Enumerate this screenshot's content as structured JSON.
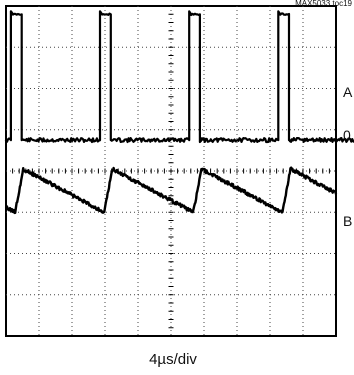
{
  "chart_data": {
    "type": "line",
    "title": "",
    "figure_id": "MAX5033 toc19",
    "xlabel": "4µs/div",
    "grid": true,
    "divisions": {
      "x": 10,
      "y": 8
    },
    "period_us": 10.8,
    "series": [
      {
        "label": "A",
        "zero_label": "0",
        "waveform": "pulse",
        "units": "div",
        "baseline": 4.75,
        "high": 7.8,
        "pulse_width_us": 1.3,
        "pulse_starts_us": [
          0.6,
          11.4,
          22.2,
          33.0,
          43.8
        ]
      },
      {
        "label": "B",
        "waveform": "sawtooth",
        "units": "div",
        "peak": 4.05,
        "valley": 3.0,
        "rise_us": 1.0,
        "rise_starts_us": [
          1.1,
          11.9,
          22.7,
          33.5,
          44.3
        ]
      }
    ]
  }
}
